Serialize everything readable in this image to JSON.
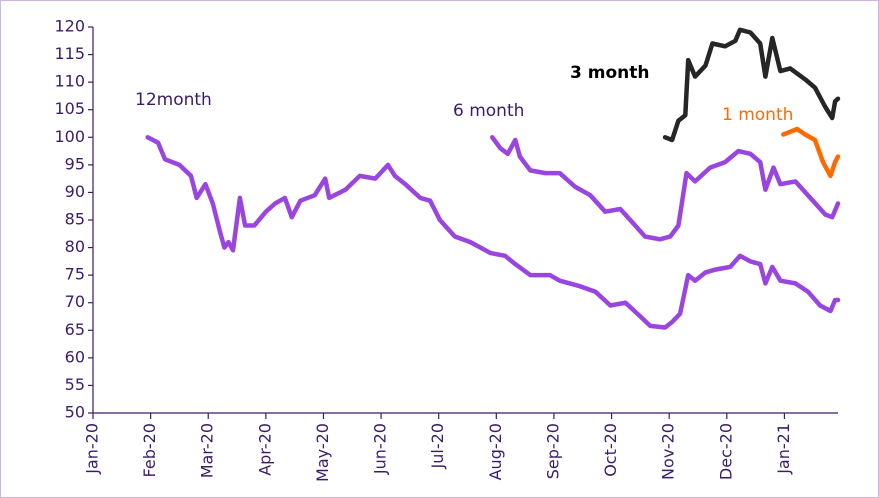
{
  "chart_data": {
    "type": "line",
    "xlim": [
      0,
      12.93
    ],
    "xticks": [
      {
        "value": 0,
        "label": "Jan-20"
      },
      {
        "value": 1,
        "label": "Feb-20"
      },
      {
        "value": 2,
        "label": "Mar-20"
      },
      {
        "value": 3,
        "label": "Apr-20"
      },
      {
        "value": 4,
        "label": "May-20"
      },
      {
        "value": 5,
        "label": "Jun-20"
      },
      {
        "value": 6,
        "label": "Jul-20"
      },
      {
        "value": 7,
        "label": "Aug-20"
      },
      {
        "value": 8,
        "label": "Sep-20"
      },
      {
        "value": 9,
        "label": "Oct-20"
      },
      {
        "value": 10,
        "label": "Nov-20"
      },
      {
        "value": 11,
        "label": "Dec-20"
      },
      {
        "value": 12,
        "label": "Jan-21"
      }
    ],
    "ylim": [
      50,
      120
    ],
    "yticks": [
      50,
      55,
      60,
      65,
      70,
      75,
      80,
      85,
      90,
      95,
      100,
      105,
      110,
      115,
      120
    ],
    "grid": false,
    "series": [
      {
        "name": "12month",
        "color": "#9b45e0",
        "x": [
          0.95,
          1.13,
          1.25,
          1.5,
          1.7,
          1.8,
          1.95,
          2.08,
          2.2,
          2.28,
          2.35,
          2.43,
          2.55,
          2.64,
          2.8,
          3.0,
          3.16,
          3.33,
          3.45,
          3.6,
          3.85,
          4.03,
          4.1,
          4.38,
          4.63,
          4.9,
          5.12,
          5.24,
          5.42,
          5.68,
          5.85,
          6.02,
          6.28,
          6.55,
          6.9,
          7.15,
          7.33,
          7.59,
          7.93,
          8.1,
          8.45,
          8.72,
          8.98,
          9.24,
          9.5,
          9.67,
          9.93,
          10.05,
          10.19,
          10.33,
          10.45,
          10.63,
          10.8,
          11.06,
          11.23,
          11.41,
          11.58,
          11.67,
          11.79,
          11.93,
          12.19,
          12.41,
          12.62,
          12.8,
          12.88,
          12.93
        ],
        "values": [
          100,
          99,
          96,
          95,
          93,
          89,
          91.5,
          88,
          83,
          80,
          81,
          79.5,
          89,
          84,
          84,
          86.5,
          88,
          89,
          85.5,
          88.5,
          89.5,
          92.5,
          89,
          90.5,
          93,
          92.5,
          95,
          93,
          91.5,
          89,
          88.5,
          85,
          82,
          81,
          79,
          78.5,
          77,
          75,
          75,
          74,
          73,
          72,
          69.5,
          70,
          67.5,
          65.8,
          65.5,
          66.5,
          68,
          75,
          74,
          75.5,
          76,
          76.5,
          78.5,
          77.5,
          77,
          73.5,
          76.5,
          74,
          73.5,
          72,
          69.5,
          68.5,
          70.5,
          70.5
        ]
      },
      {
        "name": "6 month",
        "color": "#9b45e0",
        "x": [
          6.93,
          7.07,
          7.2,
          7.33,
          7.41,
          7.59,
          7.85,
          8.1,
          8.37,
          8.63,
          8.89,
          9.15,
          9.41,
          9.58,
          9.84,
          10.02,
          10.16,
          10.3,
          10.45,
          10.71,
          10.97,
          11.2,
          11.41,
          11.58,
          11.67,
          11.81,
          11.93,
          12.19,
          12.45,
          12.71,
          12.83,
          12.93
        ],
        "values": [
          100,
          98,
          97,
          99.5,
          96.5,
          94,
          93.5,
          93.5,
          91,
          89.5,
          86.5,
          87,
          84,
          82,
          81.5,
          82,
          84,
          93.5,
          92,
          94.5,
          95.5,
          97.5,
          97,
          95.5,
          90.5,
          94.5,
          91.5,
          92,
          89,
          86,
          85.5,
          88
        ]
      },
      {
        "name": "3 month",
        "color": "#262626",
        "x": [
          9.93,
          10.05,
          10.16,
          10.28,
          10.33,
          10.45,
          10.63,
          10.75,
          10.97,
          11.15,
          11.23,
          11.41,
          11.58,
          11.67,
          11.79,
          11.93,
          12.1,
          12.36,
          12.53,
          12.71,
          12.83,
          12.88,
          12.93
        ],
        "values": [
          100,
          99.5,
          103,
          104,
          114,
          111,
          113,
          117,
          116.5,
          117.5,
          119.5,
          119,
          117,
          111,
          118,
          112,
          112.5,
          110.5,
          109,
          105.5,
          103.5,
          106.5,
          107
        ]
      },
      {
        "name": "1 month",
        "color": "#ff6a00",
        "x": [
          11.98,
          12.1,
          12.22,
          12.36,
          12.53,
          12.67,
          12.8,
          12.88,
          12.93
        ],
        "values": [
          100.5,
          101,
          101.5,
          100.5,
          99.5,
          95.5,
          93,
          95.5,
          96.5
        ]
      }
    ]
  }
}
